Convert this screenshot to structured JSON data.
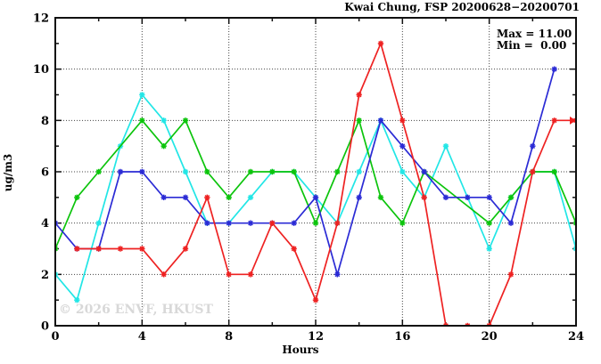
{
  "title": "Kwai Chung, FSP 20200628−20200701",
  "annotation": {
    "max_label": "Max = 11.00",
    "min_label": "Min =  0.00",
    "max_value": 11.0,
    "min_value": 0.0
  },
  "watermark": "© 2026 ENVF, HKUST",
  "colors": {
    "axis": "#111111",
    "grid": "#444444",
    "watermark": "#d8d8d8",
    "series_cyan": "#22e6e6",
    "series_green": "#0cc40c",
    "series_blue": "#2b2bd5",
    "series_red": "#ee2222"
  },
  "chart_data": {
    "type": "line",
    "title": "Kwai Chung, FSP 20200628−20200701",
    "xlabel": "Hours",
    "ylabel": "ug/m3",
    "xlim": [
      0,
      24
    ],
    "ylim": [
      0,
      12
    ],
    "x_major_ticks": [
      0,
      4,
      8,
      12,
      16,
      20,
      24
    ],
    "x_minor_ticks": [
      2,
      6,
      10,
      14,
      18,
      22
    ],
    "y_major_ticks": [
      0,
      2,
      4,
      6,
      8,
      10,
      12
    ],
    "y_minor_ticks": [
      1,
      3,
      5,
      7,
      9,
      11
    ],
    "grid": true,
    "legend_position": "top-right-inside",
    "series": [
      {
        "name": "cyan",
        "color_key": "series_cyan",
        "points": [
          [
            0,
            2
          ],
          [
            1,
            1
          ],
          [
            2,
            4
          ],
          [
            3,
            7
          ],
          [
            4,
            9
          ],
          [
            5,
            8
          ],
          [
            6,
            6
          ],
          [
            7,
            4
          ],
          [
            8,
            4
          ],
          [
            9,
            5
          ],
          [
            10,
            6
          ],
          [
            11,
            6
          ],
          [
            12,
            5
          ],
          [
            13,
            4
          ],
          [
            14,
            6
          ],
          [
            15,
            8
          ],
          [
            16,
            6
          ],
          [
            17,
            5
          ],
          [
            18,
            7
          ],
          [
            19,
            5
          ],
          [
            20,
            3
          ],
          [
            21,
            5
          ],
          [
            22,
            6
          ],
          [
            23,
            6
          ],
          [
            24,
            3
          ]
        ]
      },
      {
        "name": "green",
        "color_key": "series_green",
        "points": [
          [
            0,
            3
          ],
          [
            1,
            5
          ],
          [
            2,
            6
          ],
          [
            4,
            8
          ],
          [
            5,
            7
          ],
          [
            6,
            8
          ],
          [
            7,
            6
          ],
          [
            8,
            5
          ],
          [
            9,
            6
          ],
          [
            10,
            6
          ],
          [
            11,
            6
          ],
          [
            12,
            4
          ],
          [
            13,
            6
          ],
          [
            14,
            8
          ],
          [
            15,
            5
          ],
          [
            16,
            4
          ],
          [
            17,
            6
          ],
          [
            20,
            4
          ],
          [
            21,
            5
          ],
          [
            22,
            6
          ],
          [
            23,
            6
          ],
          [
            24,
            4
          ]
        ]
      },
      {
        "name": "blue",
        "color_key": "series_blue",
        "points": [
          [
            0,
            4
          ],
          [
            1,
            3
          ],
          [
            2,
            3
          ],
          [
            3,
            6
          ],
          [
            4,
            6
          ],
          [
            5,
            5
          ],
          [
            6,
            5
          ],
          [
            7,
            4
          ],
          [
            8,
            4
          ],
          [
            9,
            4
          ],
          [
            10,
            4
          ],
          [
            11,
            4
          ],
          [
            12,
            5
          ],
          [
            13,
            2
          ],
          [
            14,
            5
          ],
          [
            15,
            8
          ],
          [
            16,
            7
          ],
          [
            17,
            6
          ],
          [
            18,
            5
          ],
          [
            19,
            5
          ],
          [
            20,
            5
          ],
          [
            21,
            4
          ],
          [
            22,
            7
          ],
          [
            23,
            10
          ]
        ]
      },
      {
        "name": "red",
        "color_key": "series_red",
        "arrow_end": true,
        "points": [
          [
            1,
            3
          ],
          [
            2,
            3
          ],
          [
            3,
            3
          ],
          [
            4,
            3
          ],
          [
            5,
            2
          ],
          [
            6,
            3
          ],
          [
            7,
            5
          ],
          [
            8,
            2
          ],
          [
            9,
            2
          ],
          [
            10,
            4
          ],
          [
            11,
            3
          ],
          [
            12,
            1
          ],
          [
            13,
            4
          ],
          [
            14,
            9
          ],
          [
            15,
            11
          ],
          [
            16,
            8
          ],
          [
            17,
            5
          ],
          [
            18,
            0
          ],
          [
            19,
            0
          ],
          [
            20,
            0
          ],
          [
            21,
            2
          ],
          [
            22,
            6
          ],
          [
            23,
            8
          ],
          [
            24,
            8
          ]
        ]
      }
    ]
  }
}
